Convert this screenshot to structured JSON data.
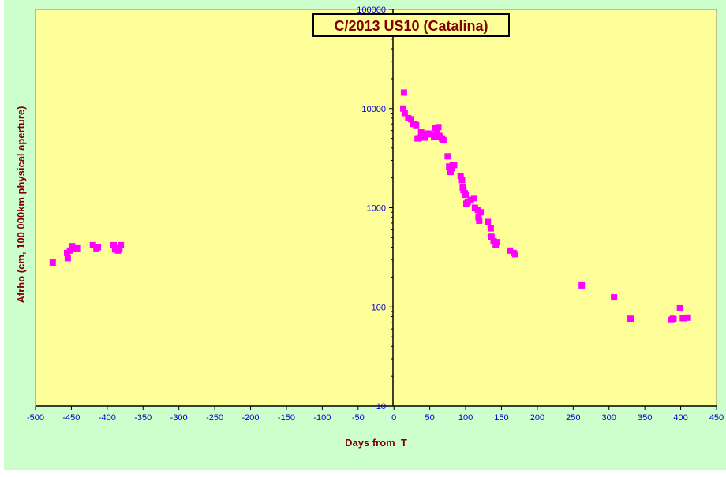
{
  "chart_data": {
    "type": "scatter",
    "title": "C/2013 US10 (Catalina)",
    "xlabel": "Days from  T",
    "ylabel": "Afrho (cm, 100 000km physical aperture)",
    "xlim": [
      -500,
      450
    ],
    "ylim": [
      10,
      100000
    ],
    "yscale": "log",
    "x_ticks": [
      -500,
      -450,
      -400,
      -350,
      -300,
      -250,
      -200,
      -150,
      -100,
      -50,
      0,
      50,
      100,
      150,
      200,
      250,
      300,
      350,
      400,
      450
    ],
    "x_tick_labels": [
      "-500",
      "-450",
      "-400",
      "-350",
      "-300",
      "-250",
      "-200",
      "-150",
      "-100",
      "-50",
      "0",
      "50",
      "100",
      "150",
      "200",
      "250",
      "300",
      "350",
      "400",
      "450"
    ],
    "y_ticks": [
      10,
      100,
      1000,
      10000,
      100000
    ],
    "y_tick_labels": [
      "10",
      "100",
      "1000",
      "10000",
      "100000"
    ],
    "grid": false,
    "colors": {
      "background": "#ccffcc",
      "plot_area": "#ffff99",
      "marker": "#ff00ff",
      "title_text": "#800000",
      "axis_labels": "#800000",
      "tick_labels": "#0000cc"
    },
    "series": [
      {
        "marker": "square",
        "points": [
          [
            -476,
            280
          ],
          [
            -456,
            350
          ],
          [
            -455,
            310
          ],
          [
            -452,
            370
          ],
          [
            -449,
            410
          ],
          [
            -446,
            390
          ],
          [
            -441,
            390
          ],
          [
            -420,
            420
          ],
          [
            -415,
            390
          ],
          [
            -413,
            400
          ],
          [
            -391,
            420
          ],
          [
            -389,
            380
          ],
          [
            -385,
            370
          ],
          [
            -383,
            390
          ],
          [
            -381,
            420
          ],
          [
            13,
            10000
          ],
          [
            14,
            14500
          ],
          [
            15,
            9000
          ],
          [
            20,
            8000
          ],
          [
            24,
            7800
          ],
          [
            27,
            7000
          ],
          [
            29,
            7000
          ],
          [
            31,
            6800
          ],
          [
            33,
            5000
          ],
          [
            36,
            5100
          ],
          [
            38,
            5800
          ],
          [
            40,
            5500
          ],
          [
            43,
            5100
          ],
          [
            48,
            5600
          ],
          [
            51,
            5500
          ],
          [
            56,
            5200
          ],
          [
            58,
            6400
          ],
          [
            60,
            6000
          ],
          [
            62,
            6500
          ],
          [
            63,
            5300
          ],
          [
            64,
            5200
          ],
          [
            67,
            5000
          ],
          [
            69,
            4800
          ],
          [
            75,
            3300
          ],
          [
            77,
            2600
          ],
          [
            79,
            2300
          ],
          [
            81,
            2500
          ],
          [
            82,
            2700
          ],
          [
            84,
            2700
          ],
          [
            93,
            2100
          ],
          [
            95,
            1900
          ],
          [
            96,
            1600
          ],
          [
            97,
            1500
          ],
          [
            99,
            1400
          ],
          [
            100,
            1350
          ],
          [
            101,
            1100
          ],
          [
            103,
            1150
          ],
          [
            107,
            1200
          ],
          [
            112,
            1250
          ],
          [
            113,
            1000
          ],
          [
            117,
            950
          ],
          [
            118,
            800
          ],
          [
            119,
            740
          ],
          [
            121,
            900
          ],
          [
            131,
            720
          ],
          [
            135,
            620
          ],
          [
            136,
            510
          ],
          [
            139,
            460
          ],
          [
            142,
            420
          ],
          [
            143,
            450
          ],
          [
            162,
            370
          ],
          [
            167,
            350
          ],
          [
            169,
            340
          ],
          [
            262,
            165
          ],
          [
            307,
            125
          ],
          [
            330,
            76
          ],
          [
            387,
            74
          ],
          [
            389,
            76
          ],
          [
            390,
            75
          ],
          [
            399,
            97
          ],
          [
            403,
            77
          ],
          [
            405,
            77
          ],
          [
            410,
            78
          ]
        ]
      }
    ]
  }
}
